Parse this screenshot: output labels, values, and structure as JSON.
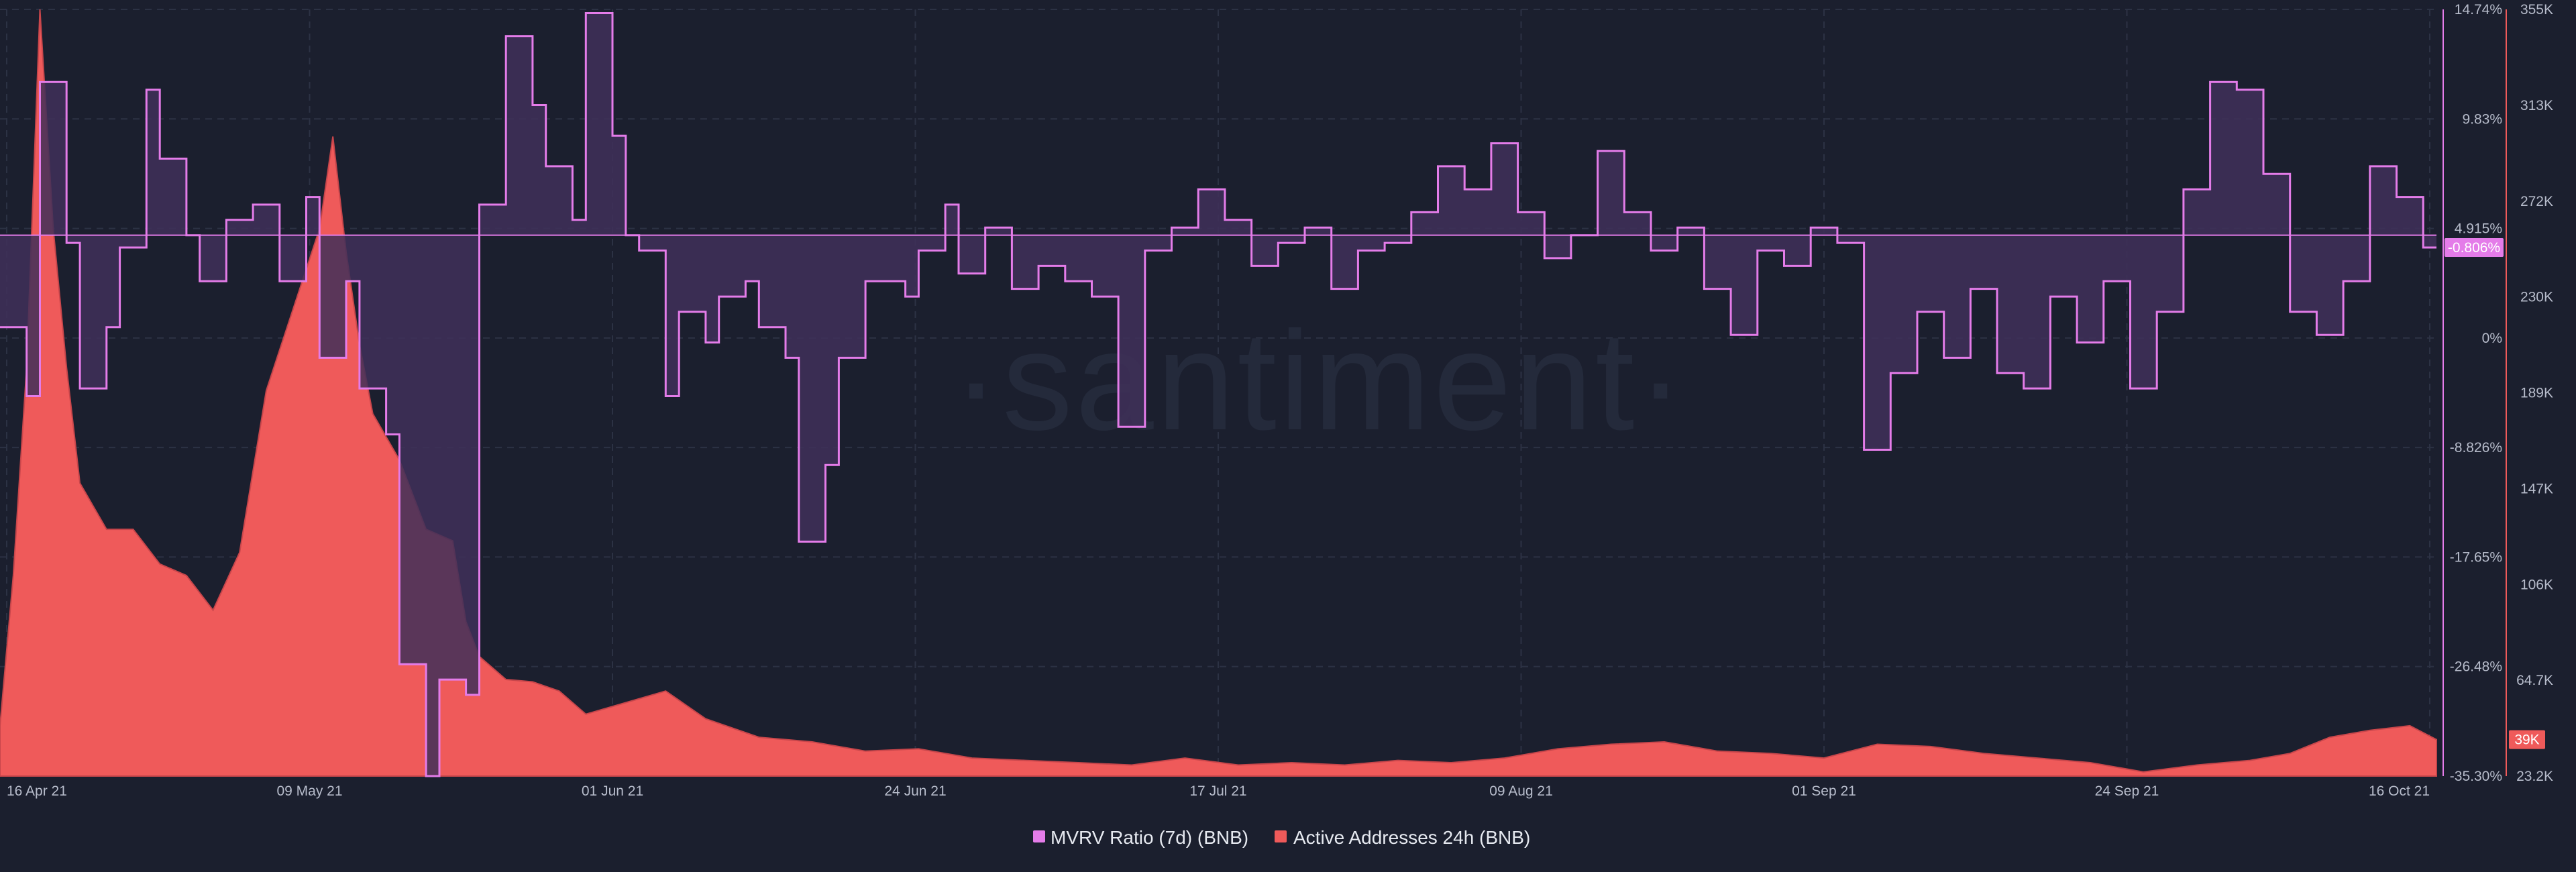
{
  "watermark": "·santiment·",
  "colors": {
    "background": "#1b1f2e",
    "mvrv_line": "#e47ce9",
    "mvrv_fill": "#3f3059",
    "active_fill": "#ef5a5a",
    "active_edge": "#c8464b",
    "grid": "#2c3244",
    "current_label_bg": "#e47ce9",
    "current_active_bg": "#ef5a5a"
  },
  "chart_data": {
    "type": "line",
    "x_axis": {
      "range": [
        "2021-04-16",
        "2021-10-16"
      ],
      "ticks": [
        "16 Apr 21",
        "09 May 21",
        "01 Jun 21",
        "24 Jun 21",
        "17 Jul 21",
        "09 Aug 21",
        "01 Sep 21",
        "24 Sep 21",
        "16 Oct 21"
      ]
    },
    "axes": {
      "mvrv": {
        "side": "right",
        "ticks": [
          "14.74%",
          "9.83%",
          "4.915%",
          "0%",
          "-8.826%",
          "-17.65%",
          "-26.48%",
          "-35.30%"
        ],
        "range": [
          -35.3,
          14.74
        ],
        "current_label": "-0.806%"
      },
      "active_addresses": {
        "side": "right",
        "ticks": [
          "355K",
          "313K",
          "272K",
          "230K",
          "189K",
          "147K",
          "106K",
          "64.7K",
          "23.2K"
        ],
        "range": [
          23200,
          355000
        ],
        "current_label": "39K"
      }
    },
    "grid": true,
    "legend_position": "bottom-center",
    "series": [
      {
        "name": "MVRV Ratio (7d) (BNB)",
        "type": "step-area",
        "baseline": 0,
        "x": [
          "2021-04-16",
          "2021-04-18",
          "2021-04-19",
          "2021-04-21",
          "2021-04-22",
          "2021-04-24",
          "2021-04-25",
          "2021-04-27",
          "2021-04-28",
          "2021-04-30",
          "2021-05-01",
          "2021-05-03",
          "2021-05-05",
          "2021-05-07",
          "2021-05-09",
          "2021-05-10",
          "2021-05-12",
          "2021-05-13",
          "2021-05-15",
          "2021-05-16",
          "2021-05-18",
          "2021-05-19",
          "2021-05-21",
          "2021-05-22",
          "2021-05-24",
          "2021-05-26",
          "2021-05-27",
          "2021-05-29",
          "2021-05-30",
          "2021-06-01",
          "2021-06-02",
          "2021-06-03",
          "2021-06-05",
          "2021-06-06",
          "2021-06-08",
          "2021-06-09",
          "2021-06-11",
          "2021-06-12",
          "2021-06-14",
          "2021-06-15",
          "2021-06-17",
          "2021-06-18",
          "2021-06-20",
          "2021-06-21",
          "2021-06-23",
          "2021-06-24",
          "2021-06-26",
          "2021-06-27",
          "2021-06-29",
          "2021-07-01",
          "2021-07-03",
          "2021-07-05",
          "2021-07-07",
          "2021-07-09",
          "2021-07-11",
          "2021-07-13",
          "2021-07-15",
          "2021-07-17",
          "2021-07-19",
          "2021-07-21",
          "2021-07-23",
          "2021-07-25",
          "2021-07-27",
          "2021-07-29",
          "2021-07-31",
          "2021-08-02",
          "2021-08-04",
          "2021-08-06",
          "2021-08-08",
          "2021-08-10",
          "2021-08-12",
          "2021-08-14",
          "2021-08-16",
          "2021-08-18",
          "2021-08-20",
          "2021-08-22",
          "2021-08-24",
          "2021-08-26",
          "2021-08-28",
          "2021-08-30",
          "2021-09-01",
          "2021-09-03",
          "2021-09-05",
          "2021-09-07",
          "2021-09-09",
          "2021-09-11",
          "2021-09-13",
          "2021-09-15",
          "2021-09-17",
          "2021-09-19",
          "2021-09-21",
          "2021-09-23",
          "2021-09-25",
          "2021-09-27",
          "2021-09-29",
          "2021-10-01",
          "2021-10-03",
          "2021-10-05",
          "2021-10-07",
          "2021-10-09",
          "2021-10-11",
          "2021-10-13",
          "2021-10-15",
          "2021-10-16"
        ],
        "values": [
          -6.0,
          -10.5,
          10.0,
          -0.5,
          -10.0,
          -6.0,
          -0.8,
          9.5,
          5.0,
          0.0,
          -3.0,
          1.0,
          2.0,
          -3.0,
          2.5,
          -8.0,
          -3.0,
          -10.0,
          -13.0,
          -28.0,
          -35.3,
          -29.0,
          -30.0,
          2.0,
          13.0,
          8.5,
          4.5,
          1.0,
          14.5,
          6.5,
          0.0,
          -1.0,
          -10.5,
          -5.0,
          -7.0,
          -4.0,
          -3.0,
          -6.0,
          -8.0,
          -20.0,
          -15.0,
          -8.0,
          -3.0,
          -3.0,
          -4.0,
          -1.0,
          2.0,
          -2.5,
          0.5,
          -3.5,
          -2.0,
          -3.0,
          -4.0,
          -12.5,
          -1.0,
          0.5,
          3.0,
          1.0,
          -2.0,
          -0.5,
          0.5,
          -3.5,
          -1.0,
          -0.5,
          1.5,
          4.5,
          3.0,
          6.0,
          1.5,
          -1.5,
          0.0,
          5.5,
          1.5,
          -1.0,
          0.5,
          -3.5,
          -6.5,
          -1.0,
          -2.0,
          0.5,
          -0.5,
          -14.0,
          -9.0,
          -5.0,
          -8.0,
          -3.5,
          -9.0,
          -10.0,
          -4.0,
          -7.0,
          -3.0,
          -10.0,
          -5.0,
          3.0,
          10.0,
          9.5,
          4.0,
          -5.0,
          -6.5,
          -3.0,
          4.5,
          2.5,
          -0.8,
          -0.8
        ]
      },
      {
        "name": "Active Addresses 24h (BNB)",
        "type": "column-area",
        "x": [
          "2021-04-16",
          "2021-04-17",
          "2021-04-18",
          "2021-04-19",
          "2021-04-20",
          "2021-04-21",
          "2021-04-22",
          "2021-04-23",
          "2021-04-24",
          "2021-04-26",
          "2021-04-28",
          "2021-04-30",
          "2021-05-02",
          "2021-05-04",
          "2021-05-06",
          "2021-05-08",
          "2021-05-10",
          "2021-05-11",
          "2021-05-12",
          "2021-05-13",
          "2021-05-14",
          "2021-05-16",
          "2021-05-18",
          "2021-05-20",
          "2021-05-21",
          "2021-05-22",
          "2021-05-24",
          "2021-05-26",
          "2021-05-28",
          "2021-05-30",
          "2021-06-02",
          "2021-06-05",
          "2021-06-08",
          "2021-06-12",
          "2021-06-16",
          "2021-06-20",
          "2021-06-24",
          "2021-06-28",
          "2021-07-02",
          "2021-07-06",
          "2021-07-10",
          "2021-07-14",
          "2021-07-18",
          "2021-07-22",
          "2021-07-26",
          "2021-07-30",
          "2021-08-03",
          "2021-08-07",
          "2021-08-11",
          "2021-08-15",
          "2021-08-19",
          "2021-08-23",
          "2021-08-27",
          "2021-08-31",
          "2021-09-04",
          "2021-09-08",
          "2021-09-12",
          "2021-09-16",
          "2021-09-20",
          "2021-09-24",
          "2021-09-28",
          "2021-10-02",
          "2021-10-05",
          "2021-10-08",
          "2021-10-11",
          "2021-10-14",
          "2021-10-16"
        ],
        "values": [
          45000,
          110000,
          200000,
          355000,
          260000,
          200000,
          150000,
          140000,
          130000,
          130000,
          115000,
          110000,
          95000,
          120000,
          190000,
          225000,
          260000,
          300000,
          250000,
          210000,
          180000,
          160000,
          130000,
          125000,
          90000,
          75000,
          65000,
          64000,
          60000,
          50000,
          55000,
          60000,
          48000,
          40000,
          38000,
          34000,
          35000,
          31000,
          30000,
          29000,
          28000,
          31000,
          28000,
          29000,
          28000,
          30000,
          29000,
          31000,
          35000,
          37000,
          38000,
          34000,
          33000,
          31000,
          37000,
          36000,
          33000,
          31000,
          29000,
          25000,
          28000,
          30000,
          33000,
          40000,
          43000,
          45000,
          39000
        ]
      }
    ]
  },
  "legend": [
    {
      "label": "MVRV Ratio (7d) (BNB)"
    },
    {
      "label": "Active Addresses 24h (BNB)"
    }
  ]
}
